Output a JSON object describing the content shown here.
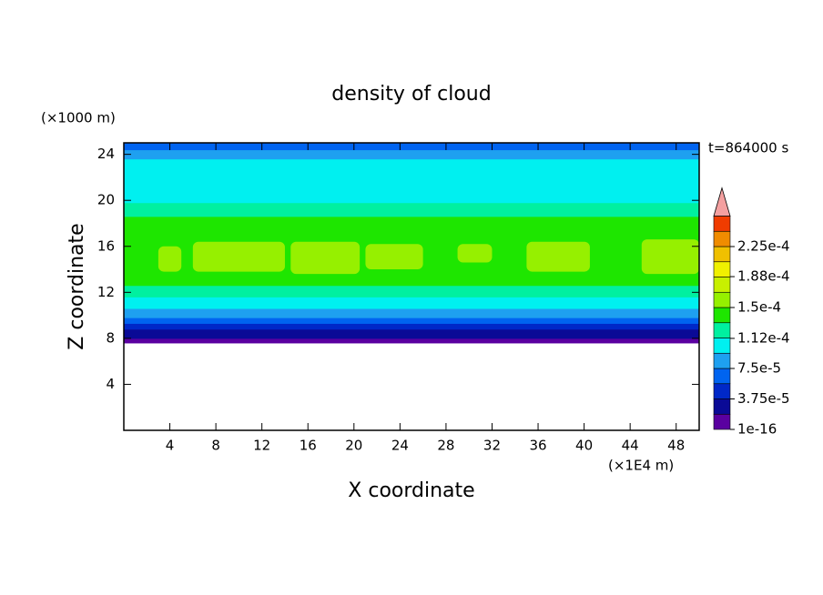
{
  "chart_data": {
    "type": "contour",
    "title": "density of cloud",
    "xlabel": "X coordinate",
    "ylabel": "Z coordinate",
    "xunit": "(×1E4 m)",
    "yunit": "(×1000 m)",
    "time_label": "t=864000 s",
    "xlim": [
      0,
      50
    ],
    "xticks": [
      4,
      8,
      12,
      16,
      20,
      24,
      28,
      32,
      36,
      40,
      44,
      48
    ],
    "ylim": [
      0,
      25
    ],
    "yticks": [
      4,
      8,
      12,
      16,
      20,
      24
    ],
    "levels": [
      1e-16,
      1.875e-05,
      3.75e-05,
      5.625e-05,
      7.5e-05,
      9.375e-05,
      0.0001125,
      0.00013125,
      0.00015,
      0.00016875,
      0.0001875,
      0.00020625,
      0.000225,
      0.00024375,
      0.0002625
    ],
    "colors": [
      "#5a00a0",
      "#0a0a96",
      "#0028c8",
      "#0064f0",
      "#1ea0f0",
      "#00f0f0",
      "#00f0a0",
      "#1ee600",
      "#96f000",
      "#c8f000",
      "#f0f000",
      "#f0c000",
      "#f08c00",
      "#f03c00"
    ],
    "extend_color": "#f4a0a0",
    "cbar_ticks": [
      {
        "value": 1e-16,
        "label": "1e-16"
      },
      {
        "value": 3.75e-05,
        "label": "3.75e-5"
      },
      {
        "value": 7.5e-05,
        "label": "7.5e-5"
      },
      {
        "value": 0.000112,
        "label": "1.12e-4"
      },
      {
        "value": 0.00015,
        "label": "1.5e-4"
      },
      {
        "value": 0.000188,
        "label": "1.88e-4"
      },
      {
        "value": 0.000225,
        "label": "2.25e-4"
      }
    ],
    "profile": {
      "z": [
        7.6,
        8.0,
        8.8,
        9.3,
        9.8,
        10.6,
        11.6,
        12.6,
        18.6,
        19.8,
        23.6,
        24.4,
        25
      ],
      "values": [
        1e-05,
        2.5e-05,
        4.5e-05,
        6.5e-05,
        8.5e-05,
        0.0001,
        0.00012,
        0.00014,
        0.00012,
        0.0001,
        8.5e-05,
        6.5e-05
      ]
    },
    "patches": [
      {
        "x": [
          3,
          5
        ],
        "z": [
          13.8,
          16.0
        ],
        "value": 0.000155
      },
      {
        "x": [
          6,
          14
        ],
        "z": [
          13.8,
          16.4
        ],
        "value": 0.000155
      },
      {
        "x": [
          14.5,
          20.5
        ],
        "z": [
          13.6,
          16.4
        ],
        "value": 0.000155
      },
      {
        "x": [
          21,
          26
        ],
        "z": [
          14.0,
          16.2
        ],
        "value": 0.000155
      },
      {
        "x": [
          29,
          32
        ],
        "z": [
          14.6,
          16.2
        ],
        "value": 0.000155
      },
      {
        "x": [
          35,
          40.5
        ],
        "z": [
          13.8,
          16.4
        ],
        "value": 0.000155
      },
      {
        "x": [
          45,
          50
        ],
        "z": [
          13.6,
          16.6
        ],
        "value": 0.000155
      }
    ]
  }
}
